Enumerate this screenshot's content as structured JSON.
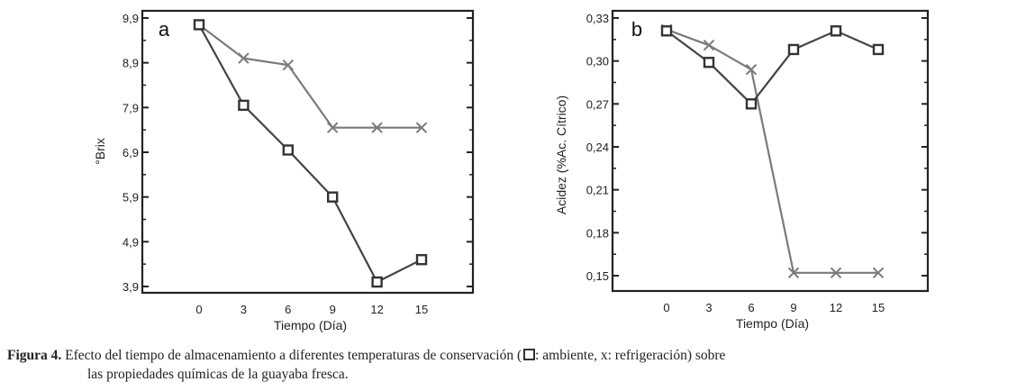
{
  "chart_data": [
    {
      "type": "line",
      "panel_label": "a",
      "xlabel": "Tiempo (Día)",
      "ylabel": "°Brix",
      "categories": [
        "0",
        "3",
        "6",
        "9",
        "12",
        "15"
      ],
      "y_ticks": [
        "9,9",
        "8,9",
        "7,9",
        "6,9",
        "5,9",
        "4,9",
        "3,9"
      ],
      "y_tick_values": [
        9.9,
        8.9,
        7.9,
        6.9,
        5.9,
        4.9,
        3.9
      ],
      "ylim": [
        3.9,
        9.9
      ],
      "series": [
        {
          "marker": "square",
          "color": "#444444",
          "values": [
            9.75,
            7.95,
            6.95,
            5.9,
            4.0,
            4.5
          ]
        },
        {
          "marker": "x",
          "color": "#7a7a7a",
          "values": [
            9.75,
            9.0,
            8.85,
            7.45,
            7.45,
            7.45
          ]
        }
      ]
    },
    {
      "type": "line",
      "panel_label": "b",
      "xlabel": "Tiempo (Día)",
      "ylabel": "Acidez (%Ac. Cítrico)",
      "categories": [
        "0",
        "3",
        "6",
        "9",
        "12",
        "15"
      ],
      "y_ticks": [
        "0,33",
        "0,30",
        "0,27",
        "0,24",
        "0,21",
        "0,18",
        "0,15"
      ],
      "y_tick_values": [
        0.33,
        0.3,
        0.27,
        0.24,
        0.21,
        0.18,
        0.15
      ],
      "ylim": [
        0.145,
        0.333
      ],
      "series": [
        {
          "marker": "square",
          "color": "#444444",
          "values": [
            0.321,
            0.299,
            0.27,
            0.308,
            0.321,
            0.308
          ]
        },
        {
          "marker": "x",
          "color": "#7a7a7a",
          "values": [
            0.322,
            0.311,
            0.294,
            0.152,
            0.152,
            0.152
          ]
        }
      ]
    }
  ],
  "caption": {
    "figure_label": "Figura 4.",
    "text_before_icon": "Efecto del tiempo de almacenamiento a diferentes temperaturas de conservación (",
    "text_after_icon": ": ambiente, x: refrigeración) sobre",
    "line2": "las propiedades químicas de la guayaba fresca."
  }
}
